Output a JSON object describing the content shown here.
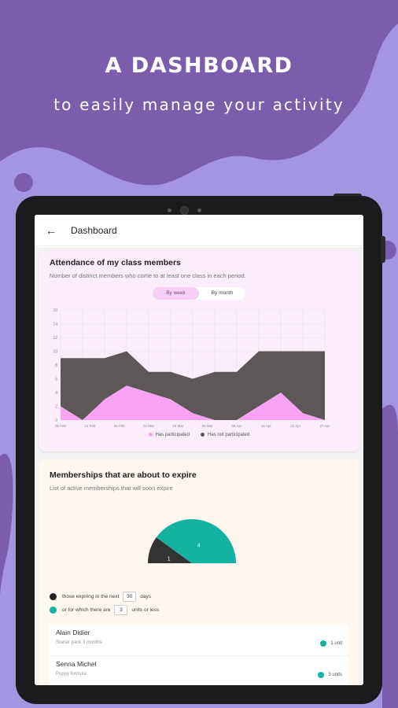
{
  "hero": {
    "title": "A DASHBOARD",
    "subtitle": "to easily manage your activity"
  },
  "colors": {
    "background": "#a395df",
    "blob": "#7a5eac",
    "participated": "#f7a4f4",
    "not_participated": "#5e5757",
    "teal": "#14b2a1",
    "dark": "#333333"
  },
  "appbar": {
    "back_icon": "←",
    "title": "Dashboard"
  },
  "attendance": {
    "title": "Attendance of my class members",
    "subtitle": "Number of distinct members who come to at least one class in each period.",
    "toggle": {
      "week": "By week",
      "month": "By month",
      "selected": "week"
    },
    "legend": {
      "participated": "Has participated",
      "not_participated": "Has not participated"
    }
  },
  "chart_data": {
    "type": "area",
    "stacked": true,
    "x": [
      "05 Feb",
      "12 Feb",
      "19 Feb",
      "26 Feb",
      "04 Mar",
      "11 Mar",
      "18 Mar",
      "25 Mar",
      "01 Apr",
      "08 Apr",
      "15 Apr",
      "22 Apr",
      "27 Apr"
    ],
    "x_tick_labels": [
      "05 Feb",
      "12 Feb",
      "26 Feb",
      "04 Mar",
      "18 Mar",
      "25 Mar",
      "08 Apr",
      "15 Apr",
      "22 Apr",
      "27 Apr"
    ],
    "series": [
      {
        "name": "Has participated",
        "values": [
          2,
          0,
          3,
          5,
          4,
          3,
          1,
          0,
          0,
          2,
          4,
          1,
          0
        ]
      },
      {
        "name": "Has not participated",
        "values": [
          7,
          9,
          6,
          5,
          3,
          4,
          5,
          7,
          7,
          8,
          6,
          9,
          10
        ]
      }
    ],
    "y_ticks": [
      0,
      2,
      4,
      6,
      8,
      10,
      12,
      14,
      16
    ],
    "ylim": [
      0,
      16
    ],
    "grid": true,
    "legend_position": "bottom"
  },
  "memberships": {
    "title": "Memberships that are about to expire",
    "subtitle": "List of active memberships that will soon expire",
    "pie": [
      {
        "label": "1",
        "value": 1,
        "color": "#333333"
      },
      {
        "label": "4",
        "value": 4,
        "color": "#14b2a1"
      }
    ],
    "filter1": {
      "prefix": "those expiring in the next",
      "value": "30",
      "suffix": "days"
    },
    "filter2": {
      "prefix": "or for which there are",
      "value": "3",
      "suffix": "units or less"
    },
    "items": [
      {
        "name": "Alain Didier",
        "plan": "Starter pack 3 months",
        "units": "1 unit"
      },
      {
        "name": "Senna Michel",
        "plan": "Puppy formula",
        "units": "3 units"
      }
    ]
  }
}
